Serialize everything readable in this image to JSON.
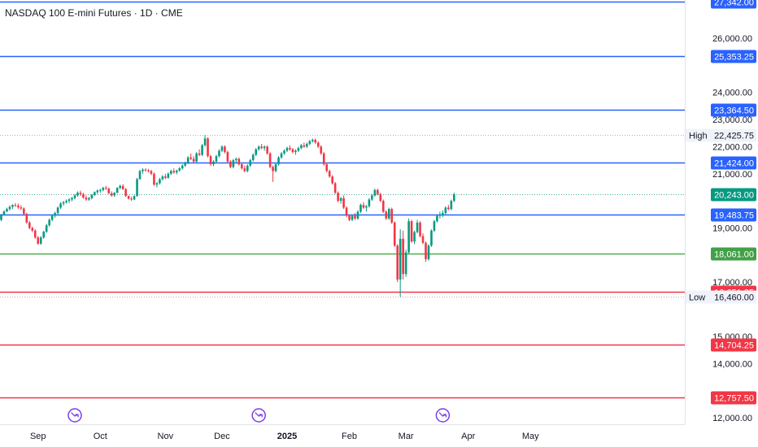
{
  "header": {
    "title": "NASDAQ 100 E-mini Futures · 1D · CME"
  },
  "colors": {
    "up": "#089981",
    "down": "#f23645",
    "blue_line": "#2962ff",
    "green_line": "#4caf50",
    "red_line": "#f23645",
    "blue_tag": "#2962ff",
    "green_tag": "#43a047",
    "red_tag": "#f23645",
    "current_tag": "#089981",
    "event_icon": "#7b3fe4"
  },
  "chart_data": {
    "type": "candlestick",
    "title": "NASDAQ 100 E-mini Futures · 1D · CME",
    "y_tick_labels": [
      "26,000.00",
      "24,000.00",
      "23,000.00",
      "22,000.00",
      "21,000.00",
      "19,000.00",
      "17,000.00",
      "15,000.00",
      "14,000.00",
      "12,000.00"
    ],
    "x_tick_labels": [
      "Sep",
      "Oct",
      "Nov",
      "Dec",
      "2025",
      "Feb",
      "Mar",
      "Apr",
      "May"
    ],
    "ylim": [
      11800,
      27400
    ],
    "horizontal_levels": [
      {
        "value": 27342.0,
        "label": "27,342.00",
        "color": "blue"
      },
      {
        "value": 25353.25,
        "label": "25,353.25",
        "color": "blue"
      },
      {
        "value": 23364.5,
        "label": "23,364.50",
        "color": "blue"
      },
      {
        "value": 21424.0,
        "label": "21,424.00",
        "color": "blue"
      },
      {
        "value": 19483.75,
        "label": "19,483.75",
        "color": "blue"
      },
      {
        "value": 18061.0,
        "label": "18,061.00",
        "color": "green"
      },
      {
        "value": 16651.25,
        "label": "16,651.25",
        "color": "red"
      },
      {
        "value": 14704.25,
        "label": "14,704.25",
        "color": "red"
      },
      {
        "value": 12757.5,
        "label": "12,757.50",
        "color": "red"
      }
    ],
    "high": {
      "label": "High",
      "value": 22425.75,
      "value_label": "22,425.75"
    },
    "low": {
      "label": "Low",
      "value": 16460.0,
      "value_label": "16,460.00"
    },
    "last_price": {
      "value": 20243.0,
      "label": "20,243.00"
    },
    "event_markers": [
      {
        "date": "2024-09-18"
      },
      {
        "date": "2024-12-18"
      },
      {
        "date": "2025-03-19"
      }
    ],
    "month_markers": [
      {
        "label": "Sep",
        "date": "2024-09-01"
      },
      {
        "label": "Oct",
        "date": "2024-10-01"
      },
      {
        "label": "Nov",
        "date": "2024-11-01"
      },
      {
        "label": "Dec",
        "date": "2024-12-01"
      },
      {
        "label": "2025",
        "date": "2025-01-01"
      },
      {
        "label": "Feb",
        "date": "2025-02-01"
      },
      {
        "label": "Mar",
        "date": "2025-03-01"
      },
      {
        "label": "Apr",
        "date": "2025-04-01"
      },
      {
        "label": "May",
        "date": "2025-05-01"
      }
    ],
    "first_candle_date": "2024-08-13",
    "candles": [
      [
        19300,
        19520,
        19250,
        19480
      ],
      [
        19480,
        19650,
        19450,
        19610
      ],
      [
        19610,
        19750,
        19580,
        19700
      ],
      [
        19700,
        19830,
        19640,
        19780
      ],
      [
        19780,
        19870,
        19700,
        19850
      ],
      [
        19850,
        19920,
        19780,
        19820
      ],
      [
        19820,
        19900,
        19700,
        19760
      ],
      [
        19760,
        19840,
        19660,
        19720
      ],
      [
        19720,
        19760,
        19450,
        19520
      ],
      [
        19520,
        19560,
        19150,
        19200
      ],
      [
        19200,
        19260,
        18950,
        19000
      ],
      [
        19000,
        19050,
        18850,
        18900
      ],
      [
        18900,
        18960,
        18600,
        18650
      ],
      [
        18650,
        18700,
        18380,
        18420
      ],
      [
        18420,
        18700,
        18380,
        18650
      ],
      [
        18650,
        18900,
        18600,
        18860
      ],
      [
        18860,
        19150,
        18820,
        19100
      ],
      [
        19100,
        19350,
        19050,
        19300
      ],
      [
        19300,
        19500,
        19250,
        19450
      ],
      [
        19450,
        19600,
        19380,
        19550
      ],
      [
        19550,
        19800,
        19500,
        19750
      ],
      [
        19750,
        19950,
        19700,
        19900
      ],
      [
        19900,
        20000,
        19820,
        19950
      ],
      [
        19950,
        20050,
        19900,
        20000
      ],
      [
        20000,
        20100,
        19920,
        20050
      ],
      [
        20050,
        20150,
        19980,
        20100
      ],
      [
        20100,
        20250,
        20050,
        20200
      ],
      [
        20200,
        20350,
        20150,
        20300
      ],
      [
        20300,
        20380,
        20180,
        20250
      ],
      [
        20250,
        20300,
        20080,
        20120
      ],
      [
        20120,
        20200,
        20000,
        20050
      ],
      [
        20050,
        20150,
        20000,
        20100
      ],
      [
        20100,
        20250,
        20050,
        20220
      ],
      [
        20220,
        20350,
        20180,
        20320
      ],
      [
        20320,
        20420,
        20250,
        20380
      ],
      [
        20380,
        20450,
        20300,
        20400
      ],
      [
        20400,
        20520,
        20350,
        20480
      ],
      [
        20480,
        20550,
        20400,
        20450
      ],
      [
        20450,
        20500,
        20250,
        20280
      ],
      [
        20280,
        20350,
        20150,
        20200
      ],
      [
        20200,
        20320,
        20150,
        20300
      ],
      [
        20300,
        20500,
        20280,
        20480
      ],
      [
        20480,
        20600,
        20420,
        20550
      ],
      [
        20550,
        20620,
        20400,
        20430
      ],
      [
        20430,
        20480,
        20150,
        20180
      ],
      [
        20180,
        20200,
        20050,
        20080
      ],
      [
        20080,
        20150,
        20000,
        20050
      ],
      [
        20050,
        20200,
        20030,
        20180
      ],
      [
        20180,
        20850,
        20150,
        20800
      ],
      [
        20800,
        21150,
        20780,
        21100
      ],
      [
        21100,
        21200,
        21000,
        21150
      ],
      [
        21150,
        21200,
        21080,
        21120
      ],
      [
        21120,
        21180,
        21050,
        21100
      ],
      [
        21100,
        21150,
        20950,
        21000
      ],
      [
        21000,
        21050,
        20550,
        20600
      ],
      [
        20600,
        20700,
        20500,
        20650
      ],
      [
        20650,
        20850,
        20600,
        20800
      ],
      [
        20800,
        20950,
        20750,
        20900
      ],
      [
        20900,
        21000,
        20800,
        20850
      ],
      [
        20850,
        21050,
        20820,
        21000
      ],
      [
        21000,
        21150,
        20950,
        21100
      ],
      [
        21100,
        21200,
        21000,
        21050
      ],
      [
        21050,
        21150,
        20980,
        21120
      ],
      [
        21120,
        21250,
        21080,
        21200
      ],
      [
        21200,
        21350,
        21150,
        21300
      ],
      [
        21300,
        21450,
        21250,
        21400
      ],
      [
        21400,
        21650,
        21350,
        21600
      ],
      [
        21600,
        21750,
        21500,
        21550
      ],
      [
        21550,
        21650,
        21400,
        21450
      ],
      [
        21450,
        21800,
        21420,
        21750
      ],
      [
        21750,
        21900,
        21650,
        21700
      ],
      [
        21700,
        22100,
        21650,
        22050
      ],
      [
        22050,
        22425,
        22000,
        22300
      ],
      [
        22300,
        22350,
        21600,
        21650
      ],
      [
        21650,
        21700,
        21300,
        21350
      ],
      [
        21350,
        21500,
        21280,
        21450
      ],
      [
        21450,
        21700,
        21400,
        21650
      ],
      [
        21650,
        21900,
        21600,
        21850
      ],
      [
        21850,
        22050,
        21800,
        22000
      ],
      [
        22000,
        22050,
        21750,
        21800
      ],
      [
        21800,
        21850,
        21400,
        21450
      ],
      [
        21450,
        21500,
        21200,
        21250
      ],
      [
        21250,
        21550,
        21200,
        21500
      ],
      [
        21500,
        21600,
        21400,
        21550
      ],
      [
        21550,
        21600,
        21300,
        21350
      ],
      [
        21350,
        21400,
        21150,
        21200
      ],
      [
        21200,
        21300,
        21050,
        21100
      ],
      [
        21100,
        21350,
        21050,
        21300
      ],
      [
        21300,
        21550,
        21250,
        21500
      ],
      [
        21500,
        21750,
        21450,
        21700
      ],
      [
        21700,
        21950,
        21650,
        21900
      ],
      [
        21900,
        22050,
        21850,
        22000
      ],
      [
        22000,
        22100,
        21900,
        21950
      ],
      [
        21950,
        22050,
        21850,
        22000
      ],
      [
        22000,
        22050,
        21700,
        21750
      ],
      [
        21750,
        21800,
        21200,
        21250
      ],
      [
        21250,
        21300,
        20700,
        21100
      ],
      [
        21100,
        21400,
        21050,
        21350
      ],
      [
        21350,
        21650,
        21300,
        21600
      ],
      [
        21600,
        21800,
        21550,
        21750
      ],
      [
        21750,
        21900,
        21700,
        21850
      ],
      [
        21850,
        22000,
        21800,
        21950
      ],
      [
        21950,
        22050,
        21850,
        21900
      ],
      [
        21900,
        21950,
        21750,
        21800
      ],
      [
        21800,
        21900,
        21700,
        21850
      ],
      [
        21850,
        22000,
        21800,
        21950
      ],
      [
        21950,
        22100,
        21900,
        22050
      ],
      [
        22050,
        22150,
        21950,
        22000
      ],
      [
        22000,
        22150,
        21950,
        22100
      ],
      [
        22100,
        22250,
        22050,
        22200
      ],
      [
        22200,
        22300,
        22150,
        22250
      ],
      [
        22250,
        22300,
        22100,
        22150
      ],
      [
        22150,
        22200,
        21950,
        22000
      ],
      [
        22000,
        22050,
        21700,
        21750
      ],
      [
        21750,
        21800,
        21300,
        21350
      ],
      [
        21350,
        21400,
        21050,
        21100
      ],
      [
        21100,
        21150,
        20850,
        20900
      ],
      [
        20900,
        20950,
        20600,
        20650
      ],
      [
        20650,
        20700,
        20250,
        20300
      ],
      [
        20300,
        20350,
        19950,
        20000
      ],
      [
        20000,
        20150,
        19900,
        20100
      ],
      [
        20100,
        20200,
        19700,
        19750
      ],
      [
        19750,
        19800,
        19400,
        19450
      ],
      [
        19450,
        19500,
        19250,
        19300
      ],
      [
        19300,
        19500,
        19250,
        19450
      ],
      [
        19450,
        19550,
        19300,
        19350
      ],
      [
        19350,
        19650,
        19300,
        19600
      ],
      [
        19600,
        19900,
        19550,
        19850
      ],
      [
        19850,
        19950,
        19700,
        19750
      ],
      [
        19750,
        19850,
        19600,
        19800
      ],
      [
        19800,
        20100,
        19750,
        20050
      ],
      [
        20050,
        20250,
        20000,
        20200
      ],
      [
        20200,
        20450,
        20150,
        20400
      ],
      [
        20400,
        20450,
        20200,
        20250
      ],
      [
        20250,
        20300,
        19950,
        20000
      ],
      [
        20000,
        20050,
        19550,
        19600
      ],
      [
        19600,
        19650,
        19300,
        19350
      ],
      [
        19350,
        19750,
        19300,
        19700
      ],
      [
        19700,
        19750,
        19150,
        19200
      ],
      [
        19200,
        19250,
        18300,
        18350
      ],
      [
        18350,
        18400,
        17000,
        17100
      ],
      [
        17100,
        18950,
        16460,
        18600
      ],
      [
        18600,
        18900,
        17100,
        17300
      ],
      [
        17300,
        18200,
        17200,
        18100
      ],
      [
        18100,
        19350,
        18050,
        19250
      ],
      [
        19250,
        19300,
        18450,
        18500
      ],
      [
        18500,
        18900,
        18400,
        18850
      ],
      [
        18850,
        19300,
        18800,
        19200
      ],
      [
        19200,
        19250,
        18650,
        18700
      ],
      [
        18700,
        18800,
        18400,
        18450
      ],
      [
        18450,
        18500,
        17750,
        17850
      ],
      [
        17850,
        18400,
        17800,
        18350
      ],
      [
        18350,
        18950,
        18300,
        18900
      ],
      [
        18900,
        19300,
        18850,
        19250
      ],
      [
        19250,
        19500,
        19200,
        19450
      ],
      [
        19450,
        19600,
        19350,
        19500
      ],
      [
        19500,
        19650,
        19400,
        19550
      ],
      [
        19550,
        19800,
        19500,
        19750
      ],
      [
        19750,
        19850,
        19650,
        19700
      ],
      [
        19700,
        20050,
        19650,
        20000
      ],
      [
        20000,
        20300,
        19950,
        20243
      ]
    ]
  }
}
